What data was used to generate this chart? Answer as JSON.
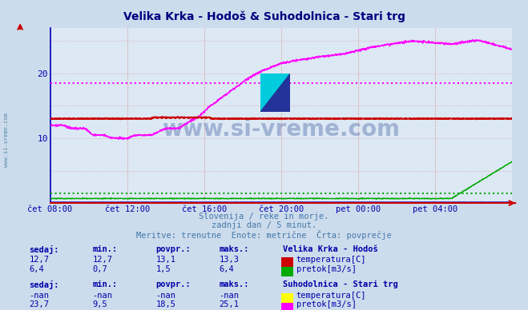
{
  "title": "Velika Krka - Hodoš & Suhodolnica - Stari trg",
  "title_color": "#000080",
  "bg_color": "#ccdcec",
  "plot_bg_color": "#dce8f4",
  "xlabel_color": "#0000aa",
  "watermark": "www.si-vreme.com",
  "watermark_color": "#1a3a8a",
  "subtitle1": "Slovenija / reke in morje.",
  "subtitle2": "zadnji dan / 5 minut.",
  "subtitle3": "Meritve: trenutne  Enote: metrične  Črta: povprečje",
  "subtitle_color": "#4477aa",
  "xticklabels": [
    "čet 08:00",
    "čet 12:00",
    "čet 16:00",
    "čet 20:00",
    "pet 00:00",
    "pet 04:00"
  ],
  "xtick_positions": [
    0,
    288,
    576,
    864,
    1152,
    1440
  ],
  "ylim": [
    0,
    27
  ],
  "yticks": [
    10,
    20
  ],
  "total_points": 1728,
  "hodosh_temp_color": "#cc0000",
  "hodosh_flow_color": "#00aa00",
  "suho_temp_color": "#ffff00",
  "suho_flow_color": "#ff00ff",
  "hodosh_temp_avg": 13.1,
  "hodosh_flow_avg": 1.5,
  "suho_flow_avg": 18.5,
  "table_text_color": "#0000aa",
  "station1_name": "Velika Krka - Hodoš",
  "station2_name": "Suhodolnica - Stari trg",
  "s1_temp_sedaj": "12,7",
  "s1_temp_min": "12,7",
  "s1_temp_povpr": "13,1",
  "s1_temp_maks": "13,3",
  "s1_flow_sedaj": "6,4",
  "s1_flow_min": "0,7",
  "s1_flow_povpr": "1,5",
  "s1_flow_maks": "6,4",
  "s2_temp_sedaj": "-nan",
  "s2_temp_min": "-nan",
  "s2_temp_povpr": "-nan",
  "s2_temp_maks": "-nan",
  "s2_flow_sedaj": "23,7",
  "s2_flow_min": "9,5",
  "s2_flow_povpr": "18,5",
  "s2_flow_maks": "25,1"
}
